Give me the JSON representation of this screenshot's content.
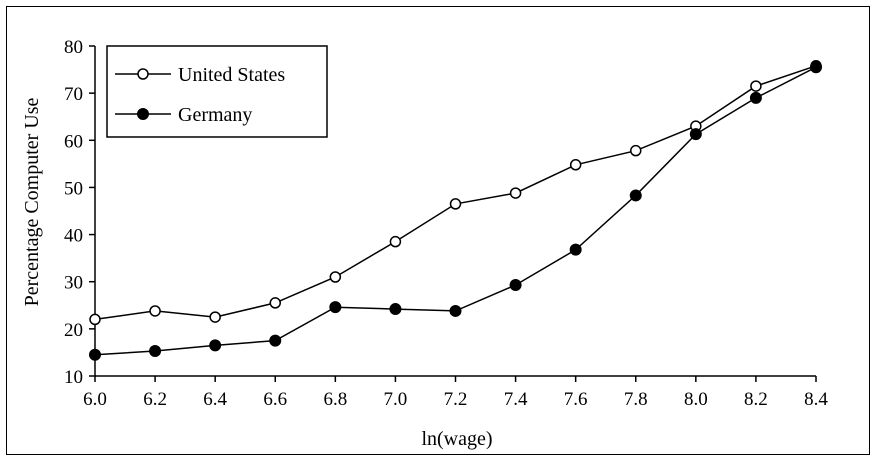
{
  "chart_data": {
    "type": "line",
    "title": "",
    "xlabel": "ln(wage)",
    "ylabel": "Percentage Computer Use",
    "x": [
      6.0,
      6.2,
      6.4,
      6.6,
      6.8,
      7.0,
      7.2,
      7.4,
      7.6,
      7.8,
      8.0,
      8.2,
      8.4
    ],
    "x_tick_labels": [
      "6.0",
      "6.2",
      "6.4",
      "6.6",
      "6.8",
      "7.0",
      "7.2",
      "7.4",
      "7.6",
      "7.8",
      "8.0",
      "8.2",
      "8.4"
    ],
    "y_tick_labels": [
      "10",
      "20",
      "30",
      "40",
      "50",
      "60",
      "70",
      "80"
    ],
    "xlim": [
      6.0,
      8.4
    ],
    "ylim": [
      10,
      80
    ],
    "grid": false,
    "legend_position": "top-left",
    "series": [
      {
        "name": "United States",
        "marker": "open-circle",
        "color": "#000000",
        "values": [
          22,
          23.8,
          22.5,
          25.5,
          31,
          38.5,
          46.5,
          48.8,
          54.8,
          57.8,
          63,
          71.5,
          75.8
        ]
      },
      {
        "name": "Germany",
        "marker": "filled-circle",
        "color": "#000000",
        "values": [
          14.5,
          15.3,
          16.5,
          17.5,
          24.6,
          24.2,
          23.8,
          29.3,
          36.8,
          48.3,
          61.3,
          69,
          75.5
        ]
      }
    ]
  }
}
